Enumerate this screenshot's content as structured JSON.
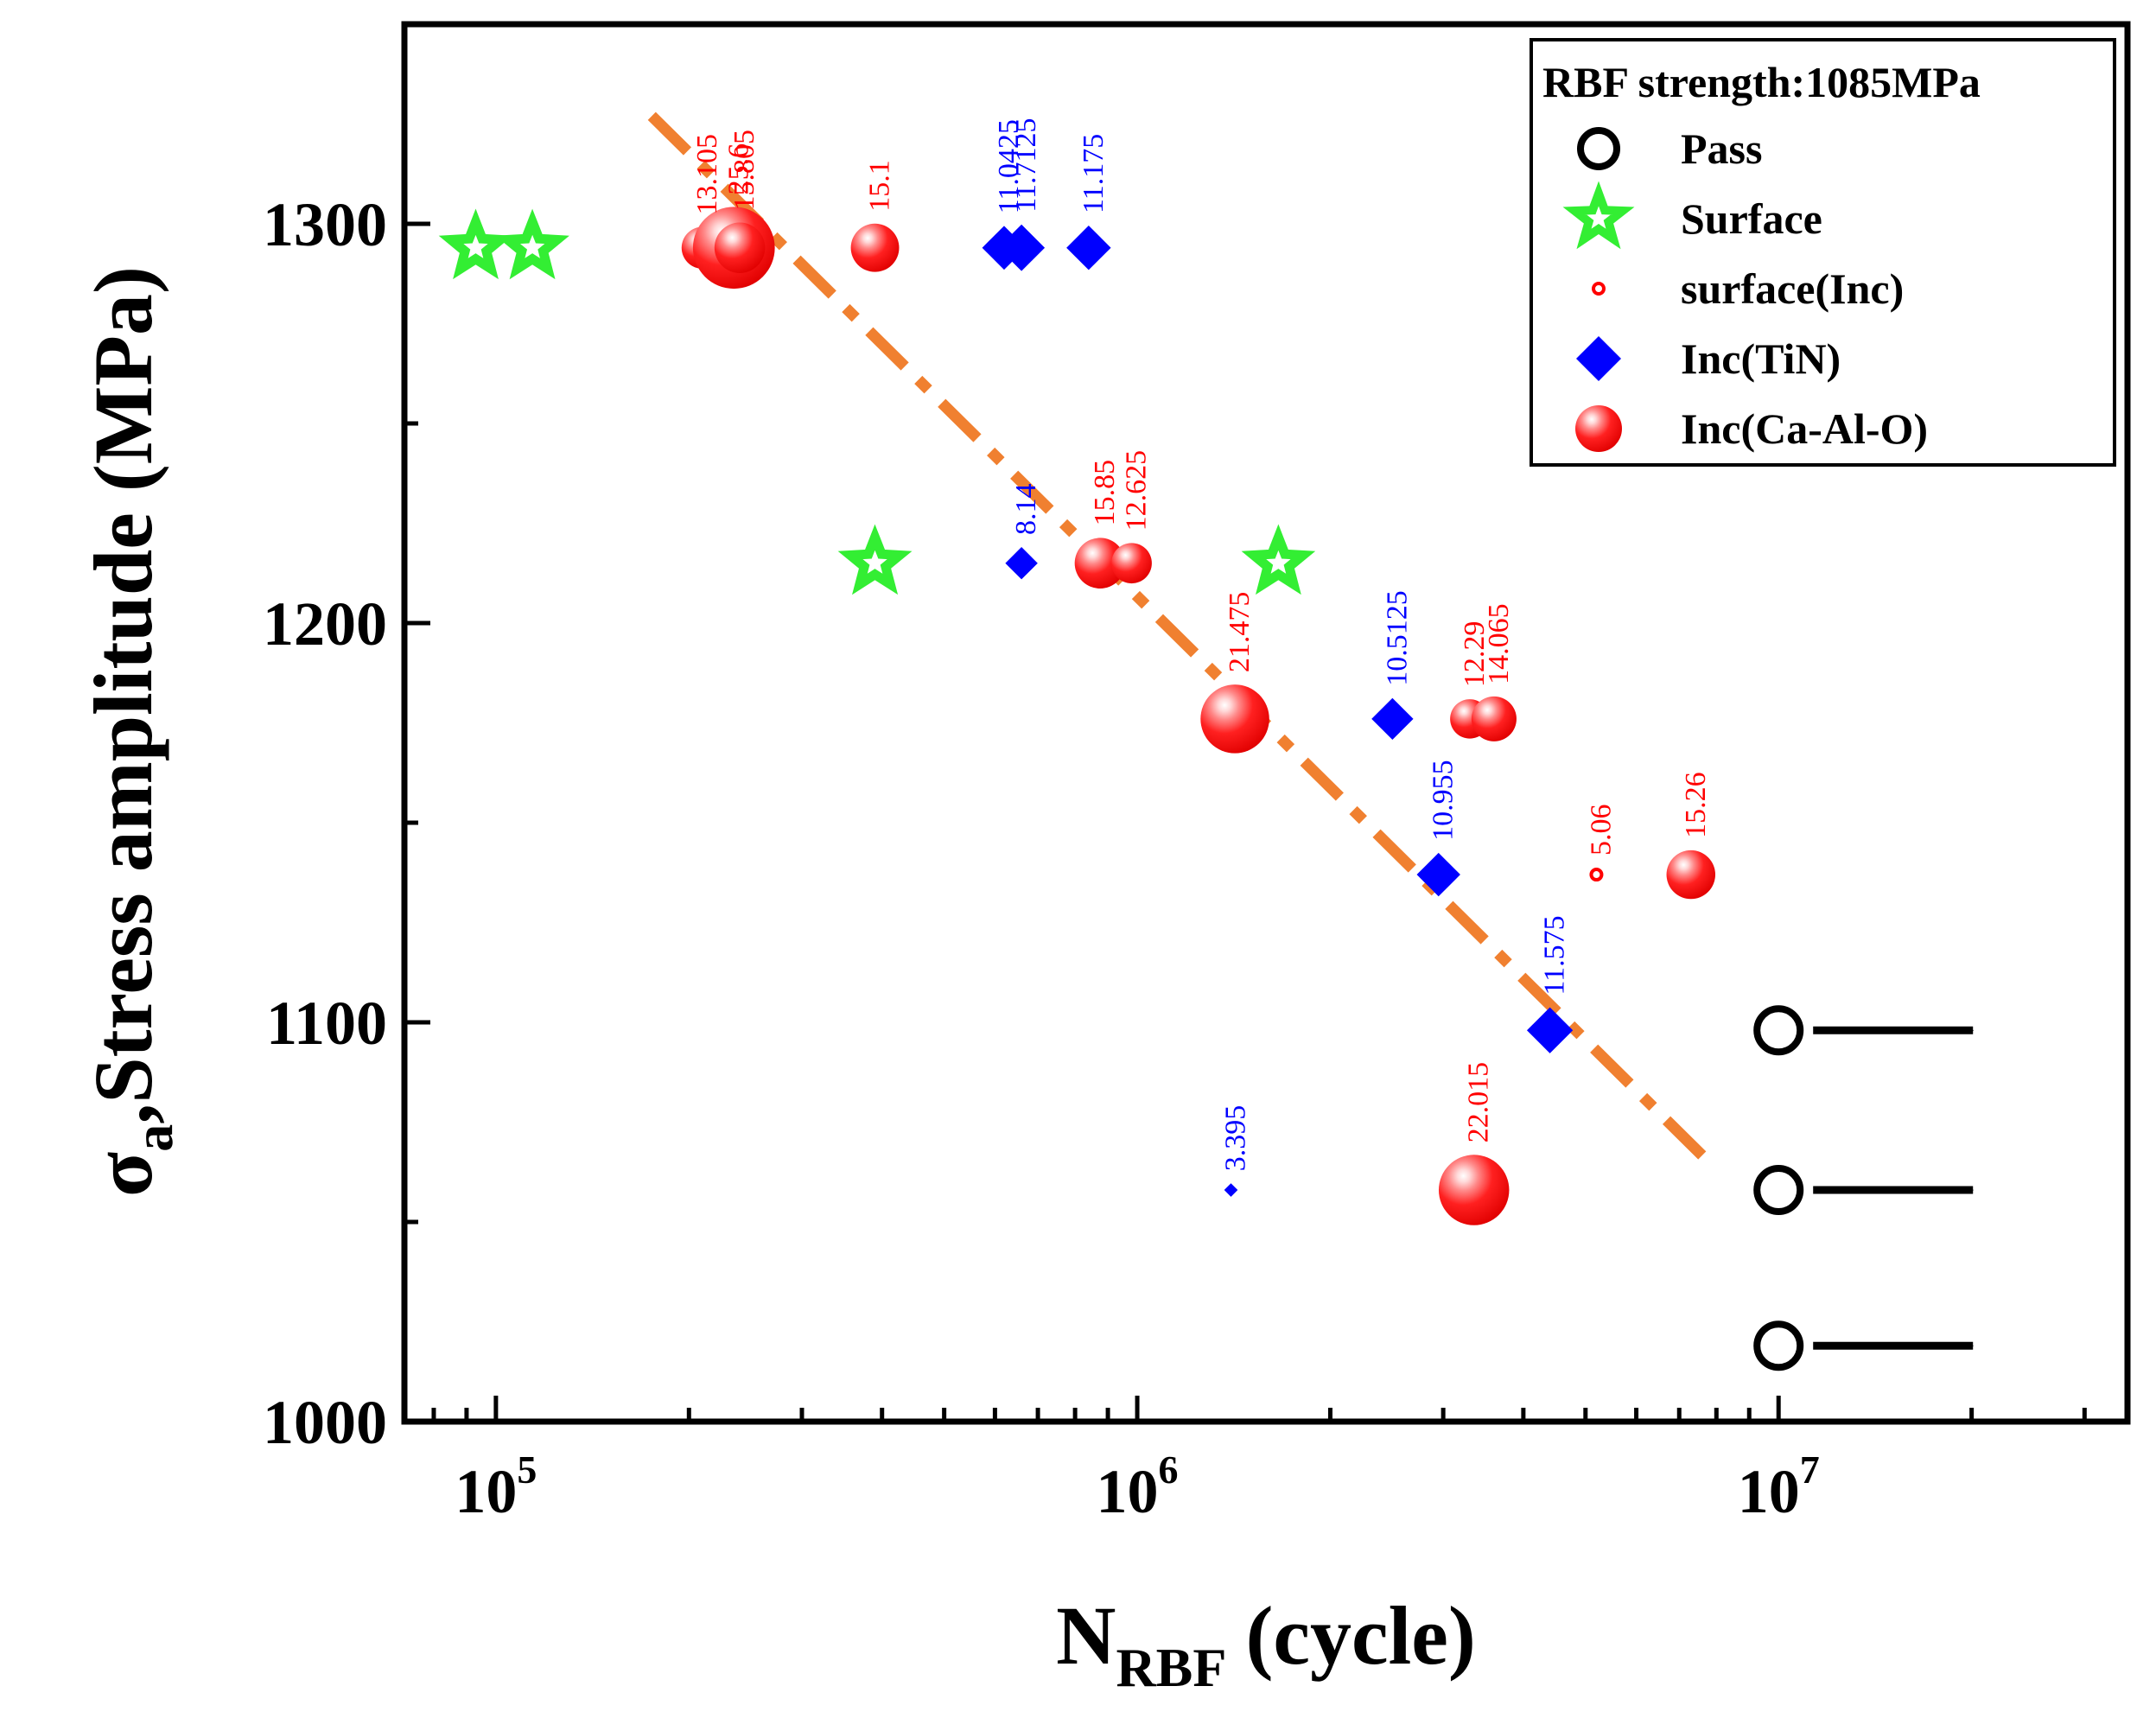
{
  "chart_data": {
    "type": "scatter",
    "xlabel": "N",
    "xlabel_sub": "RBF",
    "xlabel_unit": "(cycle)",
    "ylabel_symbol": "σ",
    "ylabel_sub": "a",
    "ylabel_text": ",Stress amplitude (MPa)",
    "xscale": "log",
    "xlim": [
      72000,
      35000000
    ],
    "ylim": [
      1000,
      1350
    ],
    "yticks": [
      1000,
      1100,
      1200,
      1300
    ],
    "xticks": [
      {
        "value": 100000,
        "base": "10",
        "exp": "5"
      },
      {
        "value": 1000000,
        "base": "10",
        "exp": "6"
      },
      {
        "value": 10000000,
        "base": "10",
        "exp": "7"
      }
    ],
    "legend_position": "top-right",
    "legend": {
      "title": "RBF strength:1085MPa",
      "entries": [
        "Pass",
        "Surface",
        "surface(Inc)",
        "Inc(TiN)",
        "Inc(Ca-Al-O)"
      ]
    },
    "colors": {
      "pass": "#000000",
      "surface": "#33ee33",
      "tin": "#0000ff",
      "caalo": "#ff0000",
      "fit": "#f08030"
    },
    "fit_line": {
      "x": [
        175000,
        7900000
      ],
      "y": [
        1327,
        1064
      ]
    },
    "series": [
      {
        "name": "Pass",
        "marker": "circle-open",
        "points": [
          {
            "x": 10000000,
            "y": 1098
          },
          {
            "x": 10000000,
            "y": 1058
          },
          {
            "x": 10000000,
            "y": 1019
          }
        ]
      },
      {
        "name": "Surface",
        "marker": "star",
        "points": [
          {
            "x": 93000,
            "y": 1294
          },
          {
            "x": 114000,
            "y": 1294
          },
          {
            "x": 390000,
            "y": 1215
          },
          {
            "x": 1660000,
            "y": 1215
          }
        ]
      },
      {
        "name": "surface(Inc)",
        "marker": "circle-small",
        "points": [
          {
            "x": 5200000,
            "y": 1137,
            "label": "5.06"
          }
        ]
      },
      {
        "name": "Inc(TiN)",
        "marker": "diamond",
        "points": [
          {
            "x": 620000,
            "y": 1294,
            "label": "11.0425",
            "size": 11.04
          },
          {
            "x": 660000,
            "y": 1294,
            "label": "11.7125",
            "size": 11.71
          },
          {
            "x": 840000,
            "y": 1294,
            "label": "11.175",
            "size": 11.18
          },
          {
            "x": 660000,
            "y": 1215,
            "label": "8.14",
            "size": 8.14
          },
          {
            "x": 1400000,
            "y": 1058,
            "label": "3.395",
            "size": 3.4
          },
          {
            "x": 2500000,
            "y": 1176,
            "label": "10.5125",
            "size": 10.51
          },
          {
            "x": 2950000,
            "y": 1137,
            "label": "10.955",
            "size": 10.96
          },
          {
            "x": 4400000,
            "y": 1098,
            "label": "11.575",
            "size": 11.58
          }
        ]
      },
      {
        "name": "Inc(Ca-Al-O)",
        "marker": "sphere",
        "points": [
          {
            "x": 210000,
            "y": 1294,
            "label": "13.105",
            "size": 13.1
          },
          {
            "x": 235000,
            "y": 1294,
            "label": "25.6",
            "size": 25.6
          },
          {
            "x": 240000,
            "y": 1294,
            "label": "15.805",
            "size": 15.81
          },
          {
            "x": 390000,
            "y": 1294,
            "label": "15.1",
            "size": 15.1
          },
          {
            "x": 875000,
            "y": 1215,
            "label": "15.85",
            "size": 15.85
          },
          {
            "x": 980000,
            "y": 1215,
            "label": "12.625",
            "size": 12.63
          },
          {
            "x": 1420000,
            "y": 1176,
            "label": "21.475",
            "size": 21.48
          },
          {
            "x": 3300000,
            "y": 1176,
            "label": "12.29",
            "size": 12.29
          },
          {
            "x": 3600000,
            "y": 1176,
            "label": "14.065",
            "size": 14.07
          },
          {
            "x": 7300000,
            "y": 1137,
            "label": "15.26",
            "size": 15.26
          },
          {
            "x": 3350000,
            "y": 1058,
            "label": "22.015",
            "size": 22.02
          }
        ]
      }
    ]
  }
}
